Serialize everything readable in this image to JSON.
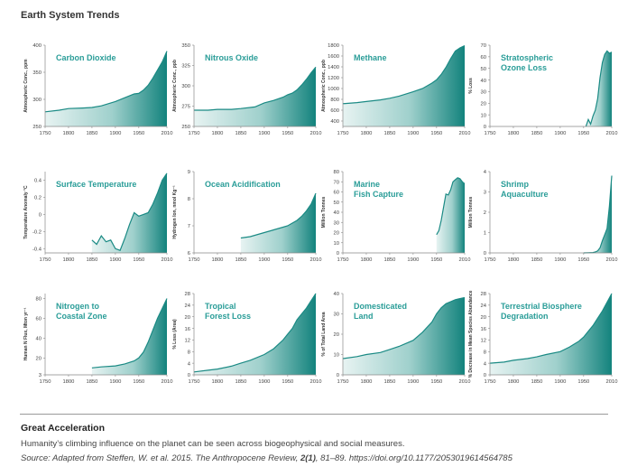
{
  "title": "Earth System Trends",
  "caption": {
    "heading": "Great Acceleration",
    "text": "Humanity’s climbing influence on the planet can be seen across biogeophysical and social measures.",
    "source_pre": "Source: Adapted from Steffen, W. et al. 2015. The Anthropocene Review, ",
    "source_bold": "2(1)",
    "source_post": ", 81–89. https://doi.org/10.1177/2053019614564785"
  },
  "colors": {
    "fill_dark": "#1a8a84",
    "fill_light": "#e4f2f1",
    "title": "#2a9d98",
    "axis": "#888888"
  },
  "chart_data": [
    {
      "type": "area",
      "title": [
        "Carbon Dioxide"
      ],
      "ylabel": "Atmospheric Conc., ppm",
      "xticks": [
        "1750",
        "1800",
        "1850",
        "1900",
        "1950",
        "2010"
      ],
      "yticks": [
        "250",
        "300",
        "350",
        "400"
      ],
      "ylim": [
        250,
        400
      ],
      "x": [
        1750,
        1780,
        1800,
        1830,
        1850,
        1870,
        1900,
        1920,
        1940,
        1950,
        1960,
        1970,
        1980,
        1990,
        2000,
        2010
      ],
      "y": [
        277,
        280,
        283,
        284,
        285,
        288,
        296,
        303,
        310,
        311,
        317,
        326,
        339,
        354,
        369,
        389
      ]
    },
    {
      "type": "area",
      "title": [
        "Nitrous Oxide"
      ],
      "ylabel": "Atmospheric Conc., ppb",
      "xticks": [
        "1750",
        "1800",
        "1850",
        "1900",
        "1950",
        "2010"
      ],
      "yticks": [
        "250",
        "275",
        "300",
        "325",
        "350"
      ],
      "ylim": [
        250,
        350
      ],
      "x": [
        1750,
        1780,
        1800,
        1830,
        1850,
        1880,
        1900,
        1920,
        1940,
        1950,
        1960,
        1970,
        1980,
        1990,
        2000,
        2010
      ],
      "y": [
        270,
        270,
        271,
        271,
        272,
        274,
        279,
        282,
        286,
        289,
        291,
        295,
        301,
        308,
        316,
        323
      ]
    },
    {
      "type": "area",
      "title": [
        "Methane"
      ],
      "ylabel": "Atmospheric Conc., ppb",
      "xticks": [
        "1750",
        "1800",
        "1850",
        "1900",
        "1950",
        "2010"
      ],
      "yticks": [
        "400",
        "600",
        "800",
        "1000",
        "1200",
        "1400",
        "1600",
        "1800"
      ],
      "ylim": [
        300,
        1800
      ],
      "x": [
        1750,
        1780,
        1800,
        1830,
        1850,
        1870,
        1900,
        1920,
        1940,
        1950,
        1960,
        1970,
        1980,
        1990,
        2000,
        2010
      ],
      "y": [
        720,
        740,
        760,
        790,
        820,
        860,
        940,
        1000,
        1100,
        1160,
        1260,
        1390,
        1550,
        1690,
        1750,
        1790
      ]
    },
    {
      "type": "area",
      "title": [
        "Stratospheric",
        "Ozone Loss"
      ],
      "ylabel": "% Loss",
      "xticks": [
        "1750",
        "1800",
        "1850",
        "1900",
        "1950",
        "2010"
      ],
      "yticks": [
        "0",
        "10",
        "20",
        "30",
        "40",
        "50",
        "60",
        "70"
      ],
      "ylim": [
        0,
        70
      ],
      "x": [
        1955,
        1960,
        1965,
        1970,
        1975,
        1980,
        1985,
        1990,
        1995,
        2000,
        2005,
        2010
      ],
      "y": [
        0,
        6,
        2,
        9,
        14,
        24,
        42,
        55,
        62,
        65,
        63,
        64
      ]
    },
    {
      "type": "area",
      "title": [
        "Surface Temperature"
      ],
      "ylabel": "Temperature Anomaly °C",
      "xticks": [
        "1750",
        "1800",
        "1850",
        "1900",
        "1950",
        "2010"
      ],
      "yticks": [
        "-0.4",
        "-0.2",
        "0",
        "0.2",
        "0.4"
      ],
      "ylim": [
        -0.45,
        0.5
      ],
      "x": [
        1850,
        1860,
        1870,
        1880,
        1890,
        1900,
        1910,
        1920,
        1930,
        1940,
        1950,
        1960,
        1970,
        1980,
        1990,
        2000,
        2010
      ],
      "y": [
        -0.3,
        -0.35,
        -0.25,
        -0.32,
        -0.3,
        -0.4,
        -0.42,
        -0.28,
        -0.12,
        0.02,
        -0.02,
        0.0,
        0.02,
        0.12,
        0.25,
        0.4,
        0.48
      ]
    },
    {
      "type": "area",
      "title": [
        "Ocean Acidification"
      ],
      "ylabel": "Hydrogen Ion, nmol Kg⁻¹",
      "xticks": [
        "1750",
        "1800",
        "1850",
        "1900",
        "1950",
        "2010"
      ],
      "yticks": [
        "6",
        "7",
        "8",
        "9"
      ],
      "ylim": [
        6,
        9
      ],
      "x": [
        1850,
        1870,
        1900,
        1920,
        1940,
        1950,
        1960,
        1970,
        1980,
        1990,
        2000,
        2010
      ],
      "y": [
        6.55,
        6.6,
        6.75,
        6.85,
        6.95,
        7.0,
        7.1,
        7.2,
        7.35,
        7.55,
        7.8,
        8.2
      ]
    },
    {
      "type": "area",
      "title": [
        "Marine",
        "Fish Capture"
      ],
      "ylabel": "Million Tonnes",
      "xticks": [
        "1750",
        "1800",
        "1850",
        "1900",
        "1950",
        "2010"
      ],
      "yticks": [
        "0",
        "10",
        "20",
        "30",
        "40",
        "50",
        "60",
        "70",
        "80"
      ],
      "ylim": [
        0,
        80
      ],
      "x": [
        1950,
        1955,
        1960,
        1965,
        1970,
        1975,
        1980,
        1985,
        1990,
        1995,
        2000,
        2005,
        2010
      ],
      "y": [
        18,
        22,
        32,
        45,
        58,
        57,
        62,
        70,
        72,
        74,
        73,
        70,
        68
      ]
    },
    {
      "type": "area",
      "title": [
        "Shrimp",
        "Aquaculture"
      ],
      "ylabel": "Million Tonnes",
      "xticks": [
        "1750",
        "1800",
        "1850",
        "1900",
        "1950",
        "2010"
      ],
      "yticks": [
        "0",
        "1",
        "2",
        "3",
        "4"
      ],
      "ylim": [
        0,
        4
      ],
      "x": [
        1950,
        1960,
        1970,
        1975,
        1980,
        1985,
        1990,
        1995,
        2000,
        2005,
        2010
      ],
      "y": [
        0,
        0.01,
        0.02,
        0.05,
        0.1,
        0.25,
        0.6,
        0.9,
        1.2,
        2.3,
        3.8
      ]
    },
    {
      "type": "area",
      "title": [
        "Nitrogen to",
        "Coastal Zone"
      ],
      "ylabel": "Human N Flux, Mton yr⁻¹",
      "xticks": [
        "1750",
        "1800",
        "1850",
        "1900",
        "1950",
        "2010"
      ],
      "yticks": [
        "3",
        "20",
        "40",
        "60",
        "80"
      ],
      "ylim": [
        3,
        85
      ],
      "x": [
        1850,
        1870,
        1900,
        1920,
        1940,
        1950,
        1960,
        1970,
        1980,
        1990,
        2000,
        2010
      ],
      "y": [
        10,
        11,
        12,
        14,
        17,
        20,
        26,
        36,
        48,
        60,
        70,
        80
      ]
    },
    {
      "type": "area",
      "title": [
        "Tropical",
        "Forest Loss"
      ],
      "ylabel": "% Loss (Area)",
      "xticks": [
        "1750",
        "1800",
        "1850",
        "1900",
        "1950",
        "2010"
      ],
      "yticks": [
        "0",
        "4",
        "8",
        "12",
        "16",
        "20",
        "24",
        "28"
      ],
      "ylim": [
        0,
        28
      ],
      "x": [
        1750,
        1780,
        1800,
        1830,
        1850,
        1870,
        1900,
        1920,
        1940,
        1950,
        1960,
        1970,
        1980,
        1990,
        2000,
        2010
      ],
      "y": [
        1,
        1.6,
        2,
        3,
        4,
        5,
        7,
        9,
        12,
        14,
        16,
        19,
        21,
        23,
        25.5,
        28
      ]
    },
    {
      "type": "area",
      "title": [
        "Domesticated",
        "Land"
      ],
      "ylabel": "% of Total Land Area",
      "xticks": [
        "1750",
        "1800",
        "1850",
        "1900",
        "1950",
        "2010"
      ],
      "yticks": [
        "0",
        "10",
        "20",
        "30",
        "40"
      ],
      "ylim": [
        0,
        40
      ],
      "x": [
        1750,
        1780,
        1800,
        1830,
        1850,
        1870,
        1900,
        1920,
        1940,
        1950,
        1960,
        1970,
        1980,
        1990,
        2000,
        2010
      ],
      "y": [
        8,
        9,
        10,
        11,
        12.5,
        14,
        17,
        21,
        26,
        30,
        33,
        35,
        36,
        37,
        37.5,
        38
      ]
    },
    {
      "type": "area",
      "title": [
        "Terrestrial Biosphere",
        "Degradation"
      ],
      "ylabel": "% Decrease in Mean Species Abundance",
      "xticks": [
        "1750",
        "1800",
        "1850",
        "1900",
        "1950",
        "2010"
      ],
      "yticks": [
        "0",
        "4",
        "8",
        "12",
        "16",
        "20",
        "24",
        "28"
      ],
      "ylim": [
        0,
        28
      ],
      "x": [
        1750,
        1780,
        1800,
        1830,
        1850,
        1870,
        1900,
        1920,
        1940,
        1950,
        1960,
        1970,
        1980,
        1990,
        2000,
        2010
      ],
      "y": [
        4,
        4.4,
        5,
        5.6,
        6.2,
        7,
        8,
        9.6,
        11.6,
        13,
        15,
        17,
        19.5,
        22,
        25,
        28
      ]
    }
  ]
}
